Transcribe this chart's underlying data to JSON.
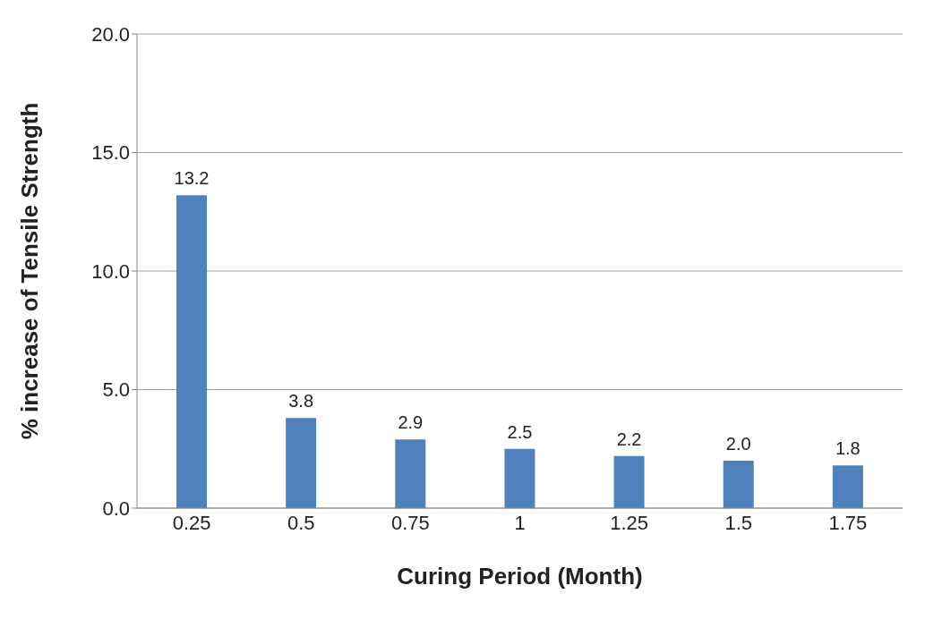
{
  "chart_data": {
    "type": "bar",
    "xlabel": "Curing Period (Month)",
    "ylabel": "% increase of Tensile Strength",
    "categories": [
      "0.25",
      "0.5",
      "0.75",
      "1",
      "1.25",
      "1.5",
      "1.75"
    ],
    "values": [
      13.2,
      3.8,
      2.9,
      2.5,
      2.2,
      2.0,
      1.8
    ],
    "value_labels": [
      "13.2",
      "3.8",
      "2.9",
      "2.5",
      "2.2",
      "2.0",
      "1.8"
    ],
    "color": "#4f81bd",
    "ylim": [
      0,
      20
    ],
    "yticks": [
      {
        "value": 0,
        "label": "0.0"
      },
      {
        "value": 5,
        "label": "5.0"
      },
      {
        "value": 10,
        "label": "10.0"
      },
      {
        "value": 15,
        "label": "15.0"
      },
      {
        "value": 20,
        "label": "20.0"
      }
    ],
    "grid": "y"
  }
}
